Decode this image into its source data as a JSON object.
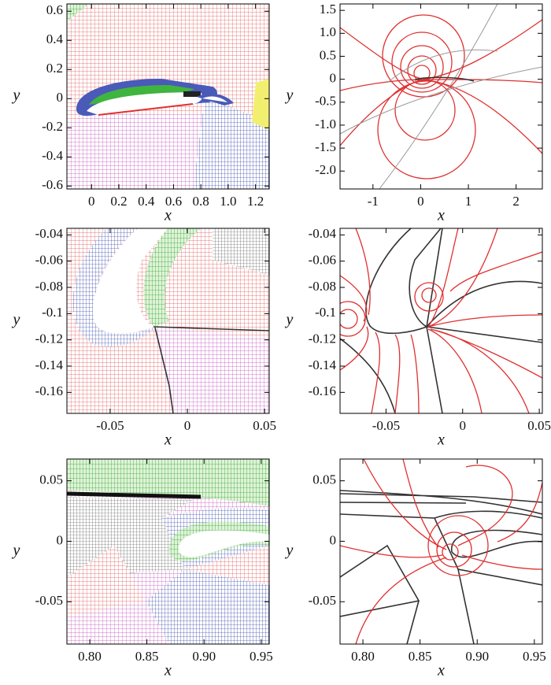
{
  "chart_data": [
    {
      "type": "mesh",
      "x_label": "x",
      "y_label": "y",
      "xlim": [
        -0.18,
        1.3
      ],
      "ylim": [
        -0.62,
        0.65
      ],
      "xticks": [
        0,
        0.2,
        0.4,
        0.6,
        0.8,
        {
          "value": 1,
          "label": "1.0"
        },
        1.2
      ],
      "yticks": [
        0.6,
        0.4,
        0.2,
        0,
        -0.2,
        -0.4,
        -0.6
      ]
    },
    {
      "type": "contour",
      "x_label": "x",
      "y_label": "y",
      "xlim": [
        -1.69,
        2.55
      ],
      "ylim": [
        -2.39,
        1.64
      ],
      "xticks": [
        -1,
        0,
        1,
        2
      ],
      "yticks": [
        1.5,
        {
          "value": 1,
          "label": "1.0"
        },
        0.5,
        0,
        -0.5,
        {
          "value": -1,
          "label": "-1.0"
        },
        -1.5,
        {
          "value": -2,
          "label": "-2.0"
        }
      ]
    },
    {
      "type": "mesh",
      "x_label": "x",
      "y_label": "y",
      "xlim": [
        -0.078,
        0.053
      ],
      "ylim": [
        -0.176,
        -0.035
      ],
      "xticks": [
        -0.05,
        0,
        0.05
      ],
      "yticks": [
        -0.04,
        -0.06,
        -0.08,
        -0.1,
        -0.12,
        -0.14,
        -0.16
      ]
    },
    {
      "type": "contour",
      "x_label": "x",
      "y_label": "y",
      "xlim": [
        -0.08,
        0.052
      ],
      "ylim": [
        -0.176,
        -0.035
      ],
      "xticks": [
        -0.05,
        0,
        0.05
      ],
      "yticks": [
        -0.04,
        -0.06,
        -0.08,
        -0.1,
        -0.12,
        -0.14,
        -0.16
      ]
    },
    {
      "type": "mesh",
      "x_label": "x",
      "y_label": "y",
      "xlim": [
        0.78,
        0.957
      ],
      "ylim": [
        -0.085,
        0.068
      ],
      "xticks": [
        {
          "value": 0.8,
          "label": "0.80"
        },
        0.85,
        {
          "value": 0.9,
          "label": "0.90"
        },
        0.95
      ],
      "yticks": [
        0.05,
        0,
        -0.05
      ]
    },
    {
      "type": "contour",
      "x_label": "x",
      "y_label": "y",
      "xlim": [
        0.78,
        0.957
      ],
      "ylim": [
        -0.085,
        0.068
      ],
      "xticks": [
        {
          "value": 0.8,
          "label": "0.80"
        },
        0.85,
        {
          "value": 0.9,
          "label": "0.90"
        },
        0.95
      ],
      "yticks": [
        0.05,
        0,
        -0.05
      ]
    }
  ]
}
